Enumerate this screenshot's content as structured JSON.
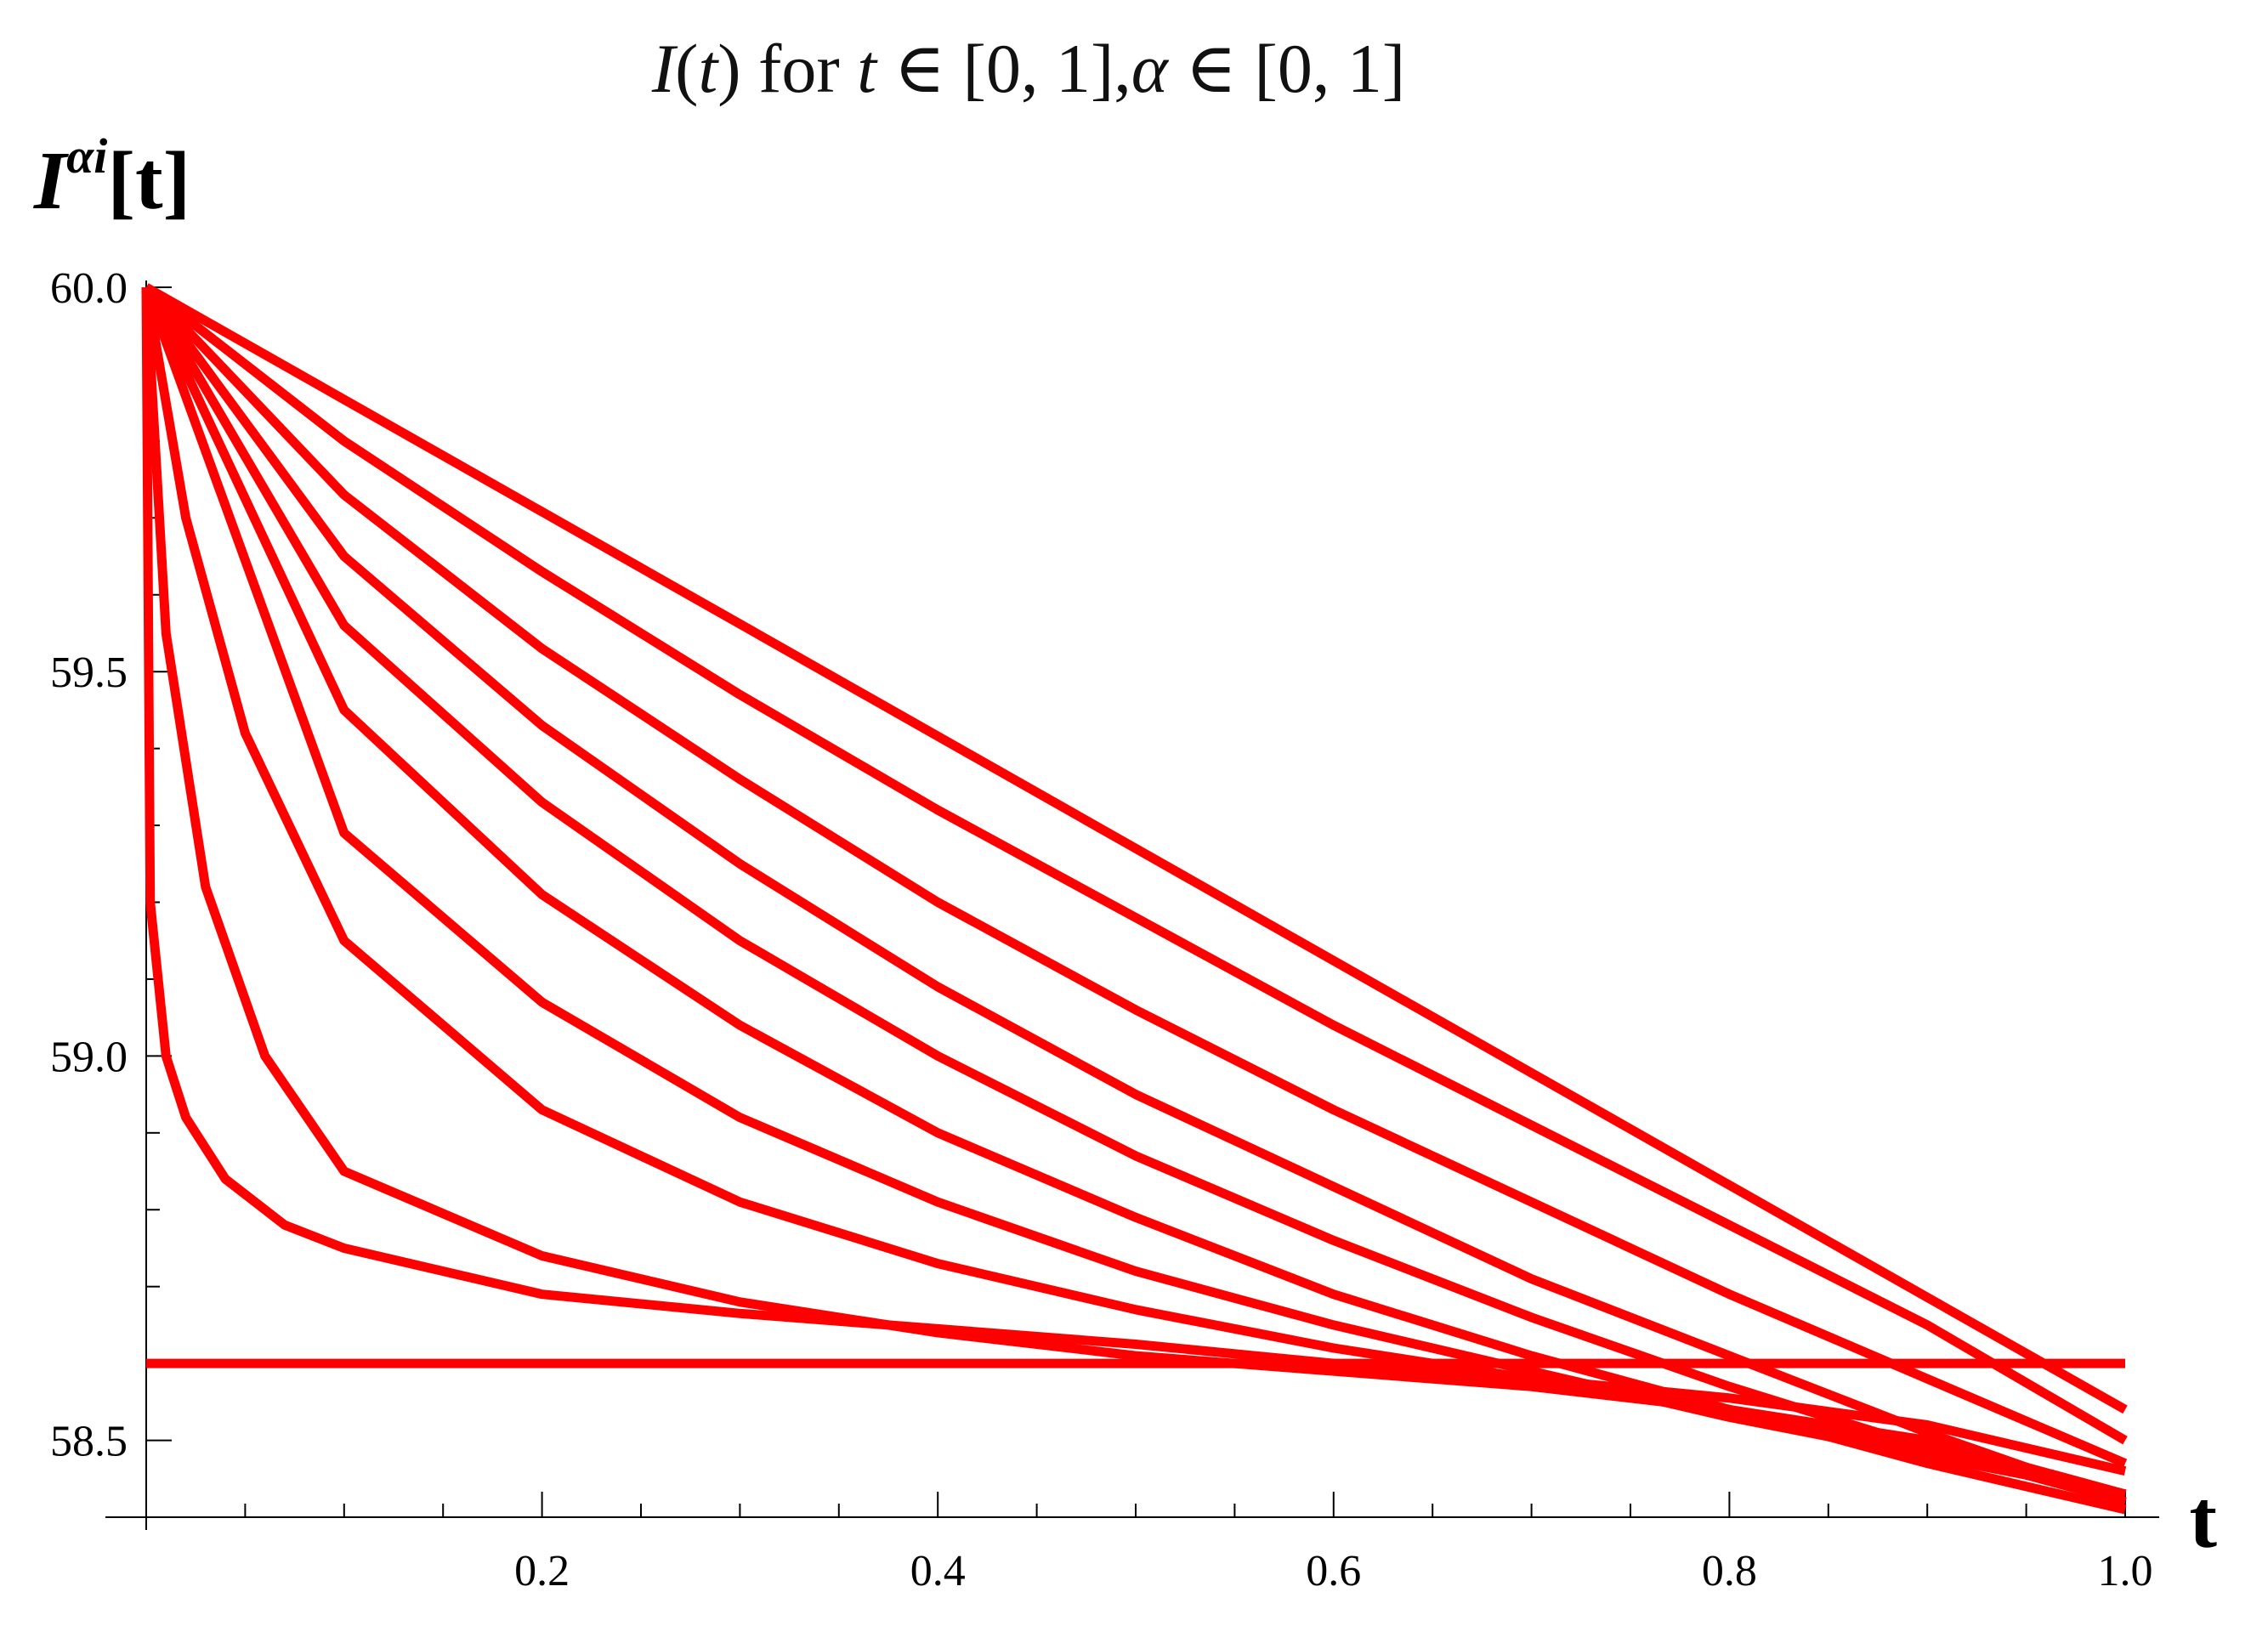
{
  "chart_data": {
    "type": "line",
    "title": {
      "italic_i": "I",
      "open_paren": "(",
      "italic_t": "t",
      "close_paren": ")",
      "for_word": " for ",
      "italic_t2": "t",
      "interval_t": " ∈ [0, 1],",
      "alpha": "α",
      "interval_alpha": " ∈ [0, 1]"
    },
    "ylabel": {
      "base": "I",
      "superscript": "αi",
      "suffix": "[t]"
    },
    "xlabel": "t",
    "xlim": [
      0,
      1.0
    ],
    "ylim": [
      58.4,
      60.0
    ],
    "x_ticks": [
      0.2,
      0.4,
      0.6,
      0.8,
      1.0
    ],
    "x_tick_labels": [
      "0.2",
      "0.4",
      "0.6",
      "0.8",
      "1.0"
    ],
    "x_minor_step": 0.05,
    "y_ticks": [
      58.5,
      59.0,
      59.5,
      60.0
    ],
    "y_tick_labels": [
      "58.5",
      "59.0",
      "59.5",
      "60.0"
    ],
    "y_minor_step": 0.1,
    "grid": false,
    "legend": "none",
    "line_color": "#ff0000",
    "series": [
      {
        "alpha": 1.0,
        "x": [
          0,
          1.0
        ],
        "y": [
          60.0,
          58.54
        ]
      },
      {
        "alpha": 0.9,
        "x": [
          0,
          0.1,
          0.2,
          0.3,
          0.4,
          0.5,
          0.6,
          0.7,
          0.8,
          0.9,
          1.0
        ],
        "y": [
          60.0,
          59.8,
          59.63,
          59.47,
          59.32,
          59.18,
          59.04,
          58.91,
          58.78,
          58.65,
          58.5
        ]
      },
      {
        "alpha": 0.8,
        "x": [
          0,
          0.1,
          0.2,
          0.3,
          0.4,
          0.5,
          0.6,
          0.7,
          0.8,
          0.9,
          1.0
        ],
        "y": [
          60.0,
          59.73,
          59.53,
          59.36,
          59.2,
          59.06,
          58.93,
          58.81,
          58.69,
          58.58,
          58.47
        ]
      },
      {
        "alpha": 0.7,
        "x": [
          0,
          0.1,
          0.2,
          0.3,
          0.4,
          0.5,
          0.6,
          0.7,
          0.8,
          0.9,
          1.0
        ],
        "y": [
          60.0,
          59.65,
          59.43,
          59.25,
          59.09,
          58.95,
          58.83,
          58.71,
          58.61,
          58.51,
          58.42
        ]
      },
      {
        "alpha": 0.6,
        "x": [
          0,
          0.1,
          0.2,
          0.3,
          0.4,
          0.5,
          0.6,
          0.7,
          0.8,
          0.9,
          1.0
        ],
        "y": [
          60.0,
          59.56,
          59.33,
          59.15,
          59.0,
          58.87,
          58.76,
          58.66,
          58.57,
          58.49,
          58.43
        ]
      },
      {
        "alpha": 0.5,
        "x": [
          0,
          0.1,
          0.2,
          0.3,
          0.4,
          0.5,
          0.6,
          0.7,
          0.8,
          0.9,
          1.0
        ],
        "y": [
          60.0,
          59.45,
          59.21,
          59.04,
          58.9,
          58.79,
          58.69,
          58.61,
          58.54,
          58.47,
          58.41
        ]
      },
      {
        "alpha": 0.4,
        "x": [
          0,
          0.1,
          0.2,
          0.3,
          0.4,
          0.5,
          0.6,
          0.7,
          0.8,
          0.9,
          1.0
        ],
        "y": [
          60.0,
          59.29,
          59.07,
          58.92,
          58.81,
          58.72,
          58.65,
          58.59,
          58.53,
          58.48,
          58.43
        ]
      },
      {
        "alpha": 0.3,
        "x": [
          0,
          0.02,
          0.05,
          0.1,
          0.2,
          0.3,
          0.4,
          0.5,
          0.6,
          0.7,
          0.8,
          0.9,
          1.0
        ],
        "y": [
          60.0,
          59.7,
          59.42,
          59.15,
          58.93,
          58.81,
          58.73,
          58.67,
          58.62,
          58.58,
          58.54,
          58.5,
          58.43
        ]
      },
      {
        "alpha": 0.2,
        "x": [
          0,
          0.01,
          0.03,
          0.06,
          0.1,
          0.2,
          0.3,
          0.4,
          0.5,
          0.6,
          0.7,
          0.8,
          0.9,
          1.0
        ],
        "y": [
          60.0,
          59.55,
          59.22,
          59.0,
          58.85,
          58.74,
          58.68,
          58.64,
          58.61,
          58.59,
          58.57,
          58.54,
          58.49,
          58.42
        ]
      },
      {
        "alpha": 0.1,
        "x": [
          0,
          0.002,
          0.01,
          0.02,
          0.04,
          0.07,
          0.1,
          0.2,
          0.3,
          0.4,
          0.5,
          0.6,
          0.7,
          0.8,
          0.9,
          1.0
        ],
        "y": [
          60.0,
          59.2,
          59.0,
          58.92,
          58.84,
          58.78,
          58.75,
          58.69,
          58.665,
          58.645,
          58.625,
          58.6,
          58.58,
          58.555,
          58.52,
          58.46
        ]
      },
      {
        "alpha": 0.0,
        "x": [
          0,
          1.0
        ],
        "y": [
          58.6,
          58.6
        ]
      }
    ]
  }
}
